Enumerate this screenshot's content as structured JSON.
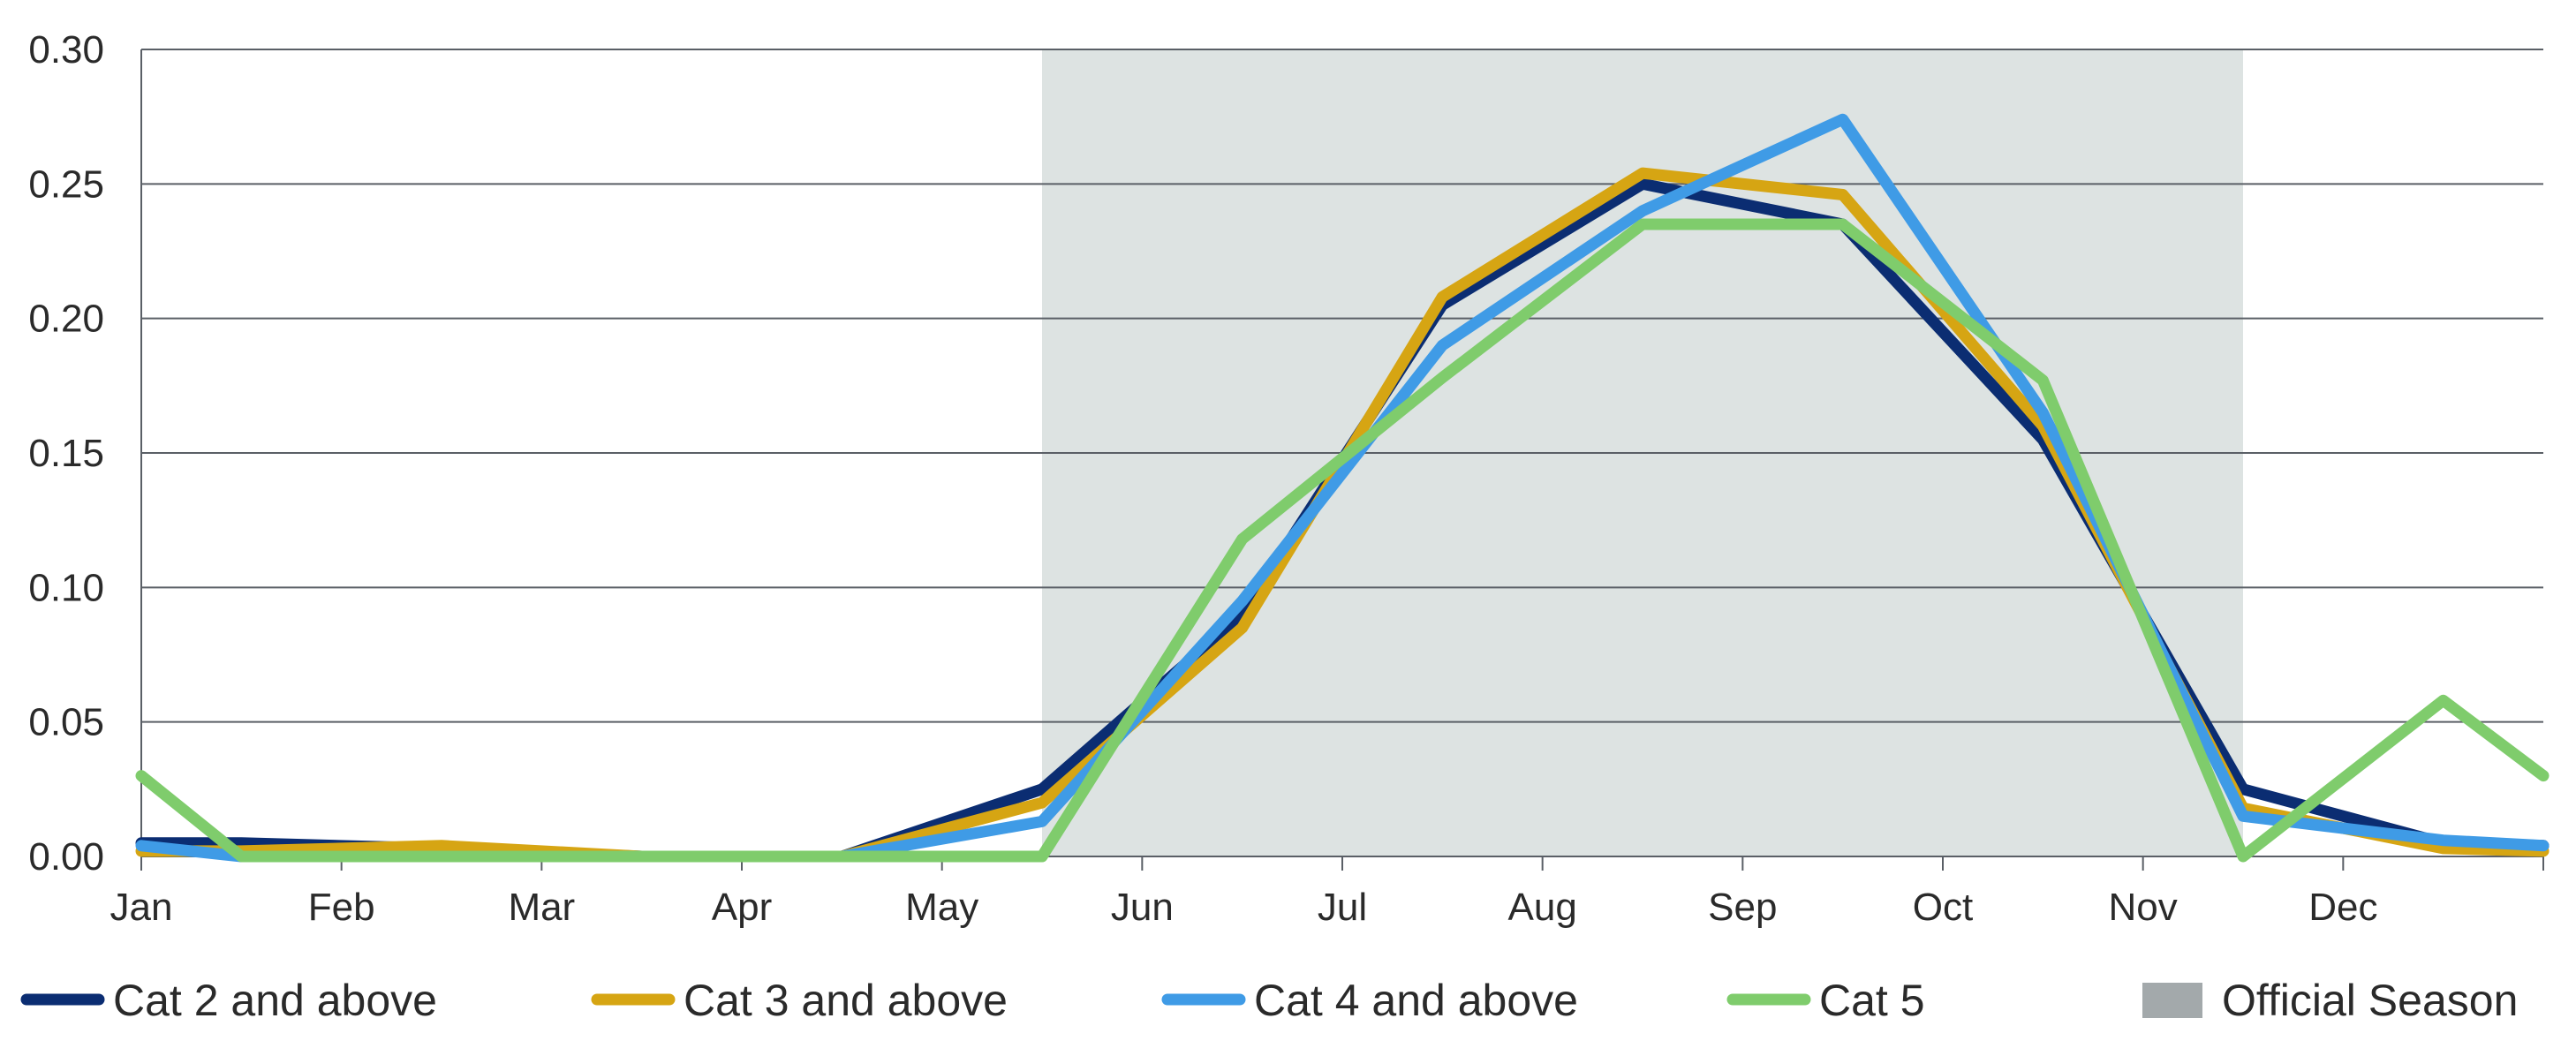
{
  "chart_data": {
    "type": "line",
    "title": "",
    "xlabel": "",
    "ylabel": "",
    "ylim": [
      0,
      0.3
    ],
    "yticks": [
      "0.00",
      "0.05",
      "0.10",
      "0.15",
      "0.20",
      "0.25",
      "0.30"
    ],
    "x_labels": [
      "Jan",
      "Feb",
      "Mar",
      "Apr",
      "May",
      "Jun",
      "Jul",
      "Aug",
      "Sep",
      "Oct",
      "Nov",
      "Dec"
    ],
    "x": [
      0,
      0.5,
      1.5,
      2.5,
      3.5,
      4.5,
      5.5,
      6.5,
      7.5,
      8.5,
      9.5,
      10.5,
      11.5,
      12
    ],
    "grid": "horizontal",
    "legend_position": "bottom",
    "shaded_region": {
      "name": "Official Season",
      "from_label": "Jun 1",
      "to_label": "Nov 30",
      "color": "#dde3e2"
    },
    "series": [
      {
        "name": "Cat 2 and above",
        "color": "#0b2d72",
        "values": [
          0.005,
          0.005,
          0.003,
          0.0,
          0.0,
          0.025,
          0.09,
          0.205,
          0.25,
          0.235,
          0.155,
          0.025,
          0.005,
          0.004
        ]
      },
      {
        "name": "Cat 3 and above",
        "color": "#d6a513",
        "values": [
          0.002,
          0.002,
          0.004,
          0.0,
          0.0,
          0.02,
          0.085,
          0.208,
          0.254,
          0.246,
          0.16,
          0.018,
          0.003,
          0.002
        ]
      },
      {
        "name": "Cat 4 and above",
        "color": "#3f9be6",
        "values": [
          0.004,
          0.0,
          0.0,
          0.0,
          0.0,
          0.013,
          0.095,
          0.19,
          0.24,
          0.274,
          0.165,
          0.015,
          0.006,
          0.004
        ]
      },
      {
        "name": "Cat 5",
        "color": "#7fcc6c",
        "values": [
          0.03,
          0.0,
          0.0,
          0.0,
          0.0,
          0.0,
          0.118,
          0.178,
          0.235,
          0.235,
          0.177,
          0.0,
          0.058,
          0.03
        ]
      }
    ]
  }
}
